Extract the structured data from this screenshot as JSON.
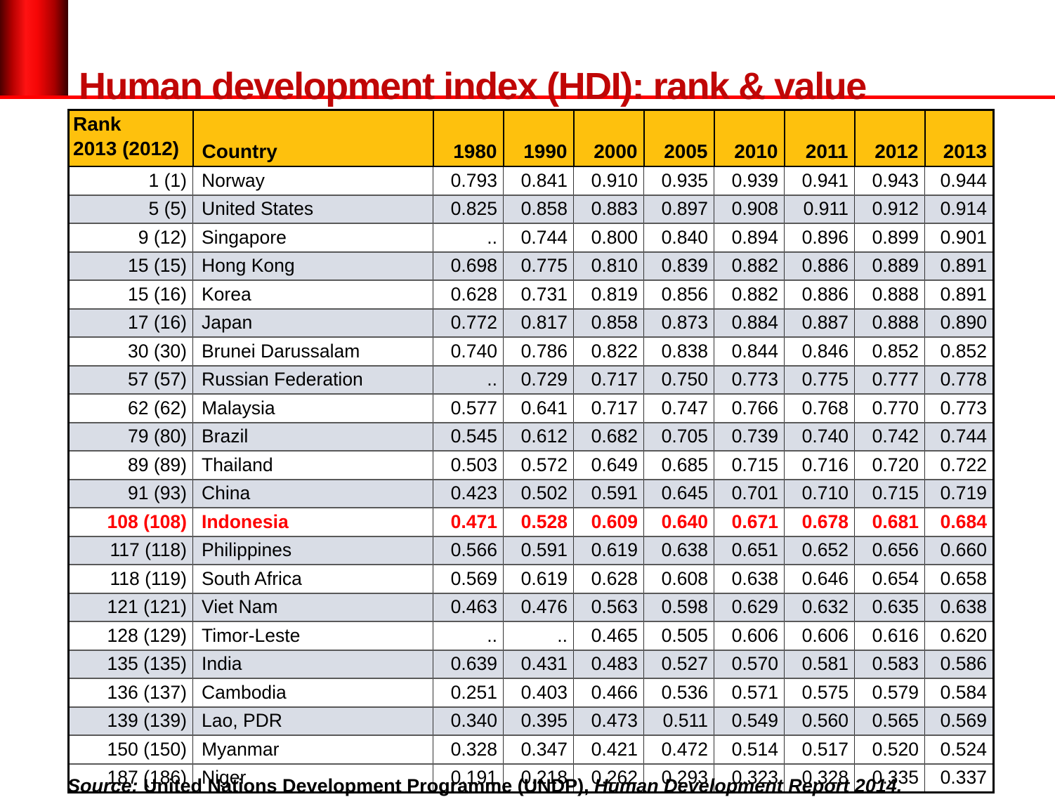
{
  "slide": {
    "title": "Human development index (HDI): rank & value",
    "source": {
      "label": "Source:",
      "text": " United Nations Development Programme (UNDP), ",
      "report": "Human Development Report 2014."
    }
  },
  "colors": {
    "title_red": "#c00606",
    "accent_red": "#ff0000",
    "header_gold": "#fec10d",
    "row_shaded": "#d9dde6",
    "highlight_red": "#fe0000"
  },
  "table": {
    "header": {
      "rank_line1": "Rank",
      "rank_line2": "2013 (2012)",
      "country": "Country",
      "years": [
        "1980",
        "1990",
        "2000",
        "2005",
        "2010",
        "2011",
        "2012",
        "2013"
      ]
    },
    "rows": [
      {
        "rank": "1 (1)",
        "country": "Norway",
        "values": [
          "0.793",
          "0.841",
          "0.910",
          "0.935",
          "0.939",
          "0.941",
          "0.943",
          "0.944"
        ],
        "shaded": false,
        "highlight": false
      },
      {
        "rank": "5 (5)",
        "country": "United States",
        "values": [
          "0.825",
          "0.858",
          "0.883",
          "0.897",
          "0.908",
          "0.911",
          "0.912",
          "0.914"
        ],
        "shaded": true,
        "highlight": false
      },
      {
        "rank": "9 (12)",
        "country": "Singapore",
        "values": [
          "..",
          "0.744",
          "0.800",
          "0.840",
          "0.894",
          "0.896",
          "0.899",
          "0.901"
        ],
        "shaded": false,
        "highlight": false
      },
      {
        "rank": "15 (15)",
        "country": "Hong Kong",
        "values": [
          "0.698",
          "0.775",
          "0.810",
          "0.839",
          "0.882",
          "0.886",
          "0.889",
          "0.891"
        ],
        "shaded": true,
        "highlight": false
      },
      {
        "rank": "15 (16)",
        "country": "Korea",
        "values": [
          "0.628",
          "0.731",
          "0.819",
          "0.856",
          "0.882",
          "0.886",
          "0.888",
          "0.891"
        ],
        "shaded": false,
        "highlight": false
      },
      {
        "rank": "17 (16)",
        "country": "Japan",
        "values": [
          "0.772",
          "0.817",
          "0.858",
          "0.873",
          "0.884",
          "0.887",
          "0.888",
          "0.890"
        ],
        "shaded": true,
        "highlight": false
      },
      {
        "rank": "30 (30)",
        "country": "Brunei Darussalam",
        "values": [
          "0.740",
          "0.786",
          "0.822",
          "0.838",
          "0.844",
          "0.846",
          "0.852",
          "0.852"
        ],
        "shaded": false,
        "highlight": false
      },
      {
        "rank": "57 (57)",
        "country": "Russian Federation",
        "values": [
          "..",
          "0.729",
          "0.717",
          "0.750",
          "0.773",
          "0.775",
          "0.777",
          "0.778"
        ],
        "shaded": true,
        "highlight": false
      },
      {
        "rank": "62 (62)",
        "country": "Malaysia",
        "values": [
          "0.577",
          "0.641",
          "0.717",
          "0.747",
          "0.766",
          "0.768",
          "0.770",
          "0.773"
        ],
        "shaded": false,
        "highlight": false
      },
      {
        "rank": "79 (80)",
        "country": "Brazil",
        "values": [
          "0.545",
          "0.612",
          "0.682",
          "0.705",
          "0.739",
          "0.740",
          "0.742",
          "0.744"
        ],
        "shaded": true,
        "highlight": false
      },
      {
        "rank": "89 (89)",
        "country": "Thailand",
        "values": [
          "0.503",
          "0.572",
          "0.649",
          "0.685",
          "0.715",
          "0.716",
          "0.720",
          "0.722"
        ],
        "shaded": false,
        "highlight": false
      },
      {
        "rank": "91 (93)",
        "country": "China",
        "values": [
          "0.423",
          "0.502",
          "0.591",
          "0.645",
          "0.701",
          "0.710",
          "0.715",
          "0.719"
        ],
        "shaded": true,
        "highlight": false
      },
      {
        "rank": "108 (108)",
        "country": "Indonesia",
        "values": [
          "0.471",
          "0.528",
          "0.609",
          "0.640",
          "0.671",
          "0.678",
          "0.681",
          "0.684"
        ],
        "shaded": false,
        "highlight": true
      },
      {
        "rank": "117 (118)",
        "country": "Philippines",
        "values": [
          "0.566",
          "0.591",
          "0.619",
          "0.638",
          "0.651",
          "0.652",
          "0.656",
          "0.660"
        ],
        "shaded": true,
        "highlight": false
      },
      {
        "rank": "118 (119)",
        "country": "South Africa",
        "values": [
          "0.569",
          "0.619",
          "0.628",
          "0.608",
          "0.638",
          "0.646",
          "0.654",
          "0.658"
        ],
        "shaded": false,
        "highlight": false
      },
      {
        "rank": "121 (121)",
        "country": "Viet Nam",
        "values": [
          "0.463",
          "0.476",
          "0.563",
          "0.598",
          "0.629",
          "0.632",
          "0.635",
          "0.638"
        ],
        "shaded": true,
        "highlight": false
      },
      {
        "rank": "128 (129)",
        "country": "Timor-Leste",
        "values": [
          "..",
          "..",
          "0.465",
          "0.505",
          "0.606",
          "0.606",
          "0.616",
          "0.620"
        ],
        "shaded": false,
        "highlight": false
      },
      {
        "rank": "135 (135)",
        "country": "India",
        "values": [
          "0.639",
          "0.431",
          "0.483",
          "0.527",
          "0.570",
          "0.581",
          "0.583",
          "0.586"
        ],
        "shaded": true,
        "highlight": false
      },
      {
        "rank": "136 (137)",
        "country": "Cambodia",
        "values": [
          "0.251",
          "0.403",
          "0.466",
          "0.536",
          "0.571",
          "0.575",
          "0.579",
          "0.584"
        ],
        "shaded": false,
        "highlight": false
      },
      {
        "rank": "139 (139)",
        "country": "Lao, PDR",
        "values": [
          "0.340",
          "0.395",
          "0.473",
          "0.511",
          "0.549",
          "0.560",
          "0.565",
          "0.569"
        ],
        "shaded": true,
        "highlight": false
      },
      {
        "rank": "150 (150)",
        "country": "Myanmar",
        "values": [
          "0.328",
          "0.347",
          "0.421",
          "0.472",
          "0.514",
          "0.517",
          "0.520",
          "0.524"
        ],
        "shaded": false,
        "highlight": false
      },
      {
        "rank": "187 (186)",
        "country": "Niger",
        "values": [
          "0.191",
          "0.218",
          "0.262",
          "0.293",
          "0.323",
          "0.328",
          "0.335",
          "0.337"
        ],
        "shaded": false,
        "highlight": false
      }
    ]
  }
}
